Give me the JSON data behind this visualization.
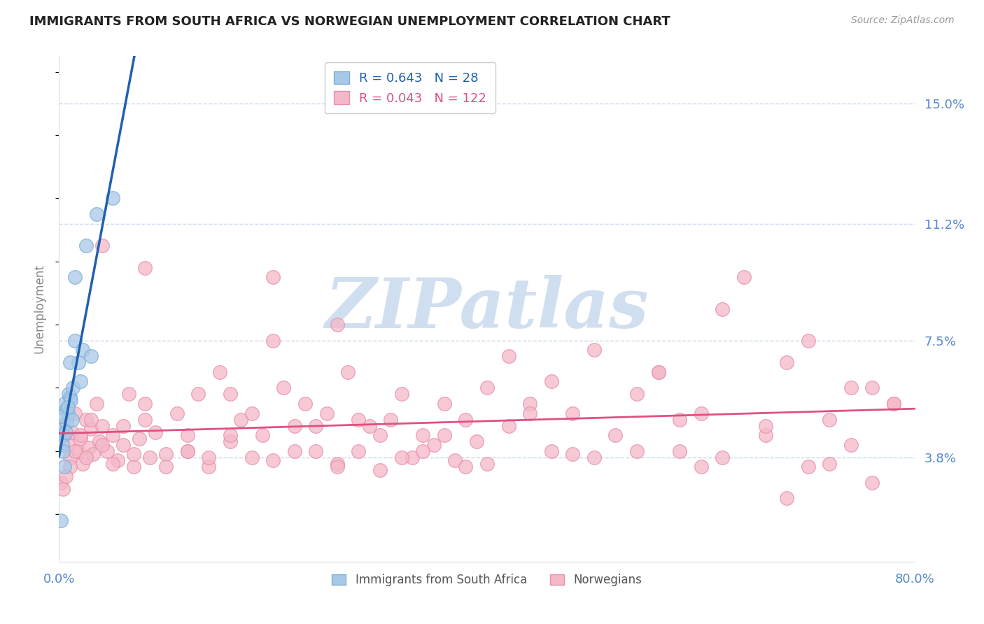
{
  "title": "IMMIGRANTS FROM SOUTH AFRICA VS NORWEGIAN UNEMPLOYMENT CORRELATION CHART",
  "source": "Source: ZipAtlas.com",
  "ylabel": "Unemployment",
  "xlim": [
    0.0,
    80.0
  ],
  "ylim": [
    0.5,
    16.5
  ],
  "yticks": [
    3.8,
    7.5,
    11.2,
    15.0
  ],
  "blue_R": 0.643,
  "blue_N": 28,
  "pink_R": 0.043,
  "pink_N": 122,
  "blue_color": "#a8c8e8",
  "blue_edge_color": "#7bafd4",
  "pink_color": "#f4b8c8",
  "pink_edge_color": "#e890a8",
  "blue_line_color": "#2060b0",
  "pink_line_color": "#e05080",
  "watermark": "ZIPatlas",
  "watermark_color": "#d0dff0",
  "legend_blue": "Immigrants from South Africa",
  "legend_pink": "Norwegians",
  "background_color": "#ffffff",
  "grid_color": "#c8d8e8",
  "title_color": "#222222",
  "tick_color": "#5588cc",
  "ylabel_color": "#888888",
  "blue_x": [
    0.3,
    0.4,
    0.5,
    0.6,
    0.7,
    0.8,
    0.9,
    1.0,
    1.1,
    1.2,
    1.3,
    1.5,
    1.5,
    1.8,
    2.0,
    2.2,
    2.5,
    3.0,
    3.5,
    5.0,
    0.2,
    0.3,
    0.4,
    0.5,
    0.6,
    0.8,
    1.0,
    0.2
  ],
  "blue_y": [
    4.8,
    4.5,
    5.5,
    5.3,
    4.9,
    5.2,
    5.8,
    5.7,
    5.6,
    5.0,
    6.0,
    9.5,
    7.5,
    6.8,
    6.2,
    7.2,
    10.5,
    7.0,
    11.5,
    12.0,
    5.1,
    4.2,
    4.0,
    3.5,
    4.6,
    5.4,
    6.8,
    1.8
  ],
  "pink_x": [
    0.3,
    0.5,
    0.8,
    1.0,
    1.2,
    1.5,
    1.8,
    2.0,
    2.2,
    2.5,
    2.8,
    3.0,
    3.2,
    3.5,
    3.8,
    4.0,
    4.5,
    5.0,
    5.5,
    6.0,
    6.5,
    7.0,
    7.5,
    8.0,
    8.5,
    9.0,
    10.0,
    11.0,
    12.0,
    13.0,
    14.0,
    15.0,
    16.0,
    17.0,
    18.0,
    19.0,
    20.0,
    21.0,
    22.0,
    23.0,
    24.0,
    25.0,
    26.0,
    27.0,
    28.0,
    29.0,
    30.0,
    31.0,
    32.0,
    33.0,
    34.0,
    35.0,
    36.0,
    37.0,
    38.0,
    39.0,
    40.0,
    42.0,
    44.0,
    46.0,
    48.0,
    50.0,
    52.0,
    54.0,
    56.0,
    58.0,
    60.0,
    62.0,
    64.0,
    66.0,
    68.0,
    70.0,
    72.0,
    74.0,
    76.0,
    78.0,
    1.0,
    1.5,
    2.0,
    2.5,
    3.0,
    4.0,
    5.0,
    6.0,
    7.0,
    8.0,
    10.0,
    12.0,
    14.0,
    16.0,
    18.0,
    20.0,
    22.0,
    24.0,
    26.0,
    28.0,
    32.0,
    36.0,
    40.0,
    44.0,
    48.0,
    54.0,
    60.0,
    66.0,
    72.0,
    78.0,
    0.2,
    0.4,
    0.6,
    42.0,
    30.0,
    20.0,
    46.0,
    34.0,
    26.0,
    58.0,
    70.0,
    62.0,
    74.0,
    8.0,
    4.0,
    38.0,
    16.0,
    12.0,
    50.0,
    56.0,
    68.0,
    76.0
  ],
  "pink_y": [
    4.8,
    4.5,
    4.2,
    3.8,
    4.6,
    5.2,
    4.0,
    4.4,
    3.6,
    5.0,
    4.1,
    4.7,
    3.9,
    5.5,
    4.3,
    4.8,
    4.0,
    4.5,
    3.7,
    4.2,
    5.8,
    3.5,
    4.4,
    5.0,
    3.8,
    4.6,
    3.9,
    5.2,
    4.0,
    5.8,
    3.5,
    6.5,
    4.3,
    5.0,
    3.8,
    4.5,
    7.5,
    6.0,
    4.8,
    5.5,
    4.0,
    5.2,
    3.6,
    6.5,
    4.0,
    4.8,
    3.4,
    5.0,
    5.8,
    3.8,
    4.5,
    4.2,
    5.5,
    3.7,
    5.0,
    4.3,
    6.0,
    4.8,
    5.5,
    4.0,
    5.2,
    3.8,
    4.5,
    5.8,
    6.5,
    4.0,
    5.2,
    3.8,
    9.5,
    4.5,
    6.8,
    3.5,
    5.0,
    4.2,
    6.0,
    5.5,
    3.5,
    4.0,
    4.5,
    3.8,
    5.0,
    4.2,
    3.6,
    4.8,
    3.9,
    5.5,
    3.5,
    4.0,
    3.8,
    4.5,
    5.2,
    3.7,
    4.0,
    4.8,
    3.5,
    5.0,
    3.8,
    4.5,
    3.6,
    5.2,
    3.9,
    4.0,
    3.5,
    4.8,
    3.6,
    5.5,
    3.0,
    2.8,
    3.2,
    7.0,
    4.5,
    9.5,
    6.2,
    4.0,
    8.0,
    5.0,
    7.5,
    8.5,
    6.0,
    9.8,
    10.5,
    3.5,
    5.8,
    4.5,
    7.2,
    6.5,
    2.5,
    3.0
  ]
}
